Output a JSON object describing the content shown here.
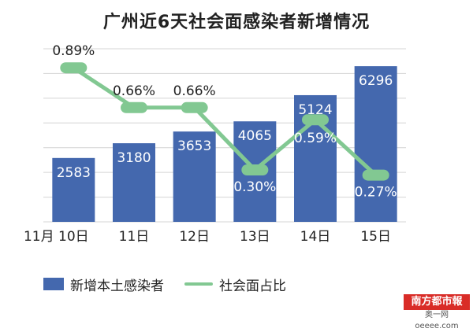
{
  "chart_data": {
    "type": "bar+line",
    "title": "广州近6天社会面感染者新增情况",
    "categories": [
      "11月 10日",
      "11日",
      "12日",
      "13日",
      "14日",
      "15日"
    ],
    "series": [
      {
        "name": "新增本土感染者",
        "type": "bar",
        "values": [
          2583,
          3180,
          3653,
          4065,
          5124,
          6296
        ],
        "labels": [
          "2583",
          "3180",
          "3653",
          "4065",
          "5124",
          "6296"
        ],
        "color": "#4468ae"
      },
      {
        "name": "社会面占比",
        "type": "line",
        "values": [
          0.89,
          0.66,
          0.66,
          0.3,
          0.59,
          0.27
        ],
        "labels": [
          "0.89%",
          "0.66%",
          "0.66%",
          "0.30%",
          "0.59%",
          "0.27%"
        ],
        "color": "#82c892"
      }
    ],
    "bar_ylim": [
      0,
      7000
    ],
    "line_ylim": [
      0.0,
      1.0
    ],
    "grid": true,
    "legend": "bottom"
  },
  "watermark": {
    "top": "南方都市報",
    "bottom": "奥一网oeeee.com"
  }
}
